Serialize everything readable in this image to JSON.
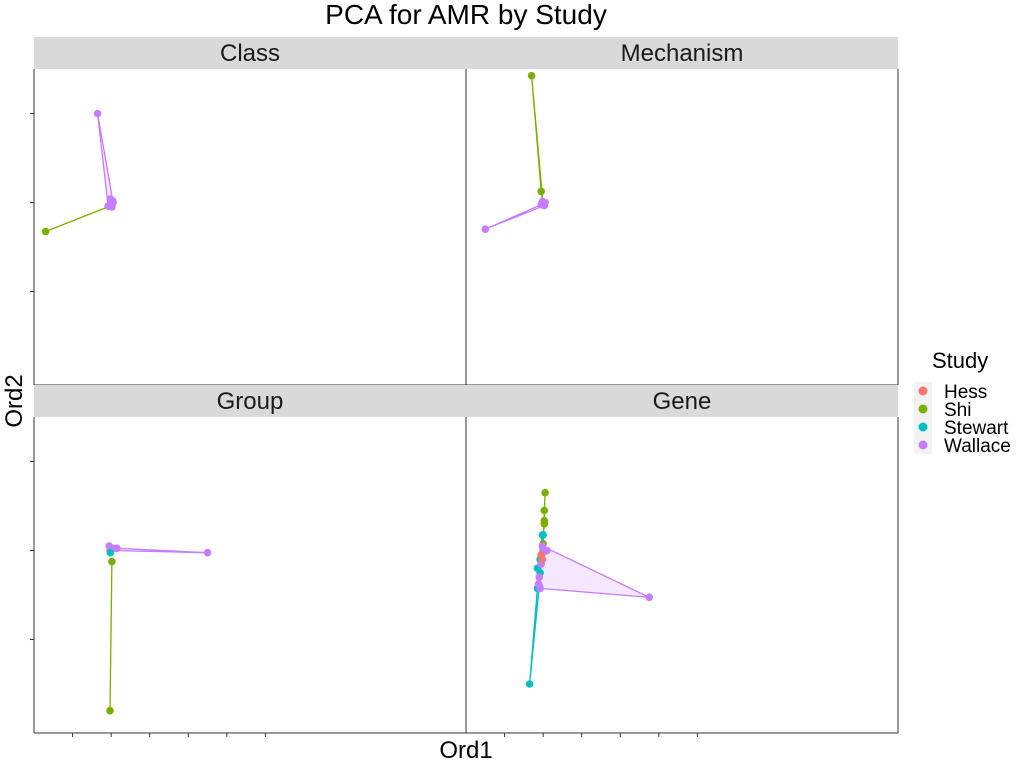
{
  "chart_data": {
    "type": "scatter",
    "title": "PCA for AMR by Study",
    "xlabel": "Ord1",
    "ylabel": "Ord2",
    "grid": false,
    "legend": {
      "title": "Study",
      "position": "right",
      "entries": [
        {
          "name": "Hess",
          "color": "#F8766D"
        },
        {
          "name": "Shi",
          "color": "#7CAE00"
        },
        {
          "name": "Stewart",
          "color": "#00BFC4"
        },
        {
          "name": "Wallace",
          "color": "#C77CFF"
        }
      ]
    },
    "x_range": [
      -2.0,
      9.2
    ],
    "y_range": [
      -4.1,
      3.0
    ],
    "x_ticks": [
      -1,
      0,
      1,
      2,
      3,
      4
    ],
    "y_ticks": [
      -2,
      0,
      2
    ],
    "facets": [
      {
        "label": "Class",
        "series": [
          {
            "study": "Shi",
            "hull": [
              [
                -1.7,
                -0.65
              ],
              [
                -0.03,
                -0.08
              ]
            ],
            "points": [
              [
                -1.7,
                -0.65
              ],
              [
                -0.03,
                -0.08
              ]
            ]
          },
          {
            "study": "Wallace",
            "hull": [
              [
                -0.35,
                2.0
              ],
              [
                0.05,
                0.0
              ],
              [
                0.02,
                -0.1
              ],
              [
                -0.08,
                -0.08
              ]
            ],
            "points": [
              [
                -0.35,
                2.0
              ],
              [
                0.05,
                0.0
              ],
              [
                0.02,
                -0.1
              ],
              [
                -0.08,
                -0.08
              ],
              [
                -0.02,
                0.08
              ],
              [
                0.04,
                0.04
              ]
            ]
          }
        ]
      },
      {
        "label": "Mechanism",
        "series": [
          {
            "study": "Shi",
            "hull": [
              [
                -0.3,
                2.85
              ],
              [
                -0.05,
                0.25
              ],
              [
                0.0,
                -0.05
              ]
            ],
            "points": [
              [
                -0.3,
                2.85
              ],
              [
                -0.05,
                0.25
              ],
              [
                0.0,
                -0.05
              ]
            ]
          },
          {
            "study": "Wallace",
            "hull": [
              [
                -1.5,
                -0.6
              ],
              [
                -0.05,
                -0.05
              ],
              [
                0.05,
                0.0
              ],
              [
                0.03,
                -0.07
              ]
            ],
            "points": [
              [
                -1.5,
                -0.6
              ],
              [
                -0.05,
                -0.05
              ],
              [
                0.05,
                0.0
              ],
              [
                0.03,
                -0.07
              ],
              [
                -0.02,
                0.02
              ]
            ]
          }
        ]
      },
      {
        "label": "Group",
        "series": [
          {
            "study": "Shi",
            "hull": [
              [
                -0.03,
                -3.6
              ],
              [
                0.02,
                -0.25
              ]
            ],
            "points": [
              [
                -0.03,
                -3.6
              ],
              [
                0.02,
                -0.25
              ]
            ]
          },
          {
            "study": "Wallace",
            "hull": [
              [
                -0.05,
                0.1
              ],
              [
                0.15,
                0.05
              ],
              [
                2.5,
                -0.05
              ],
              [
                -0.03,
                0.0
              ]
            ],
            "points": [
              [
                -0.05,
                0.1
              ],
              [
                0.15,
                0.05
              ],
              [
                2.5,
                -0.05
              ],
              [
                -0.03,
                0.0
              ],
              [
                0.05,
                0.05
              ]
            ]
          },
          {
            "study": "Stewart",
            "hull": [
              [
                -0.02,
                -0.05
              ]
            ],
            "points": [
              [
                -0.02,
                -0.05
              ]
            ]
          }
        ]
      },
      {
        "label": "Gene",
        "series": [
          {
            "study": "Stewart",
            "hull": [
              [
                -0.35,
                -3.0
              ],
              [
                -0.15,
                -0.85
              ],
              [
                -0.15,
                -0.4
              ],
              [
                -0.02,
                0.35
              ],
              [
                0.0,
                0.35
              ],
              [
                -0.1,
                -0.8
              ]
            ],
            "points": [
              [
                -0.35,
                -3.0
              ],
              [
                -0.15,
                -0.85
              ],
              [
                -0.15,
                -0.4
              ],
              [
                -0.02,
                0.35
              ],
              [
                0.0,
                0.35
              ],
              [
                -0.1,
                -0.8
              ],
              [
                -0.08,
                -0.2
              ],
              [
                -0.05,
                -0.1
              ],
              [
                -0.08,
                -0.5
              ]
            ]
          },
          {
            "study": "Shi",
            "hull": [
              [
                0.05,
                1.3
              ],
              [
                0.03,
                0.9
              ],
              [
                0.03,
                0.67
              ],
              [
                0.0,
                0.15
              ]
            ],
            "points": [
              [
                0.05,
                1.3
              ],
              [
                0.03,
                0.9
              ],
              [
                0.03,
                0.67
              ],
              [
                0.03,
                0.6
              ],
              [
                0.0,
                0.15
              ]
            ]
          },
          {
            "study": "Wallace",
            "hull": [
              [
                -0.02,
                0.1
              ],
              [
                2.75,
                -1.05
              ],
              [
                -0.08,
                -0.85
              ],
              [
                -0.12,
                -0.75
              ]
            ],
            "points": [
              [
                -0.02,
                0.1
              ],
              [
                2.75,
                -1.05
              ],
              [
                -0.08,
                -0.85
              ],
              [
                -0.12,
                -0.75
              ],
              [
                0.1,
                0.0
              ],
              [
                -0.05,
                -0.3
              ],
              [
                0.0,
                -0.05
              ],
              [
                -0.1,
                -0.6
              ]
            ]
          },
          {
            "study": "Hess",
            "hull": [
              [
                -0.05,
                -0.1
              ],
              [
                -0.02,
                -0.2
              ]
            ],
            "points": [
              [
                -0.05,
                -0.1
              ],
              [
                -0.02,
                -0.2
              ]
            ]
          }
        ]
      }
    ]
  }
}
